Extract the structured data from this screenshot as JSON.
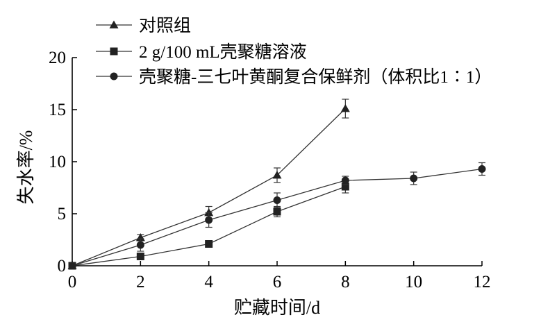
{
  "chart_data": {
    "type": "line",
    "title": "",
    "xlabel": "贮藏时间/d",
    "ylabel": "失水率/%",
    "xlim": [
      0,
      12
    ],
    "ylim": [
      0,
      20
    ],
    "xticks": [
      0,
      2,
      4,
      6,
      8,
      10,
      12
    ],
    "yticks": [
      0,
      5,
      10,
      15,
      20
    ],
    "grid": false,
    "legend_position": "top-left",
    "series": [
      {
        "name": "对照组",
        "marker": "triangle",
        "x": [
          0,
          2,
          4,
          6,
          8
        ],
        "y": [
          0,
          2.7,
          5.1,
          8.7,
          15.1
        ],
        "error": [
          0.2,
          0.3,
          0.6,
          0.7,
          0.9
        ]
      },
      {
        "name": "2 g/100 mL壳聚糖溶液",
        "marker": "square",
        "x": [
          0,
          2,
          4,
          6,
          8
        ],
        "y": [
          0,
          0.9,
          2.1,
          5.2,
          7.6
        ],
        "error": [
          0.1,
          0.3,
          0.3,
          0.5,
          0.6
        ]
      },
      {
        "name": "壳聚糖-三七叶黄酮复合保鲜剂（体积比1∶1）",
        "marker": "circle",
        "x": [
          0,
          2,
          4,
          6,
          8,
          10,
          12
        ],
        "y": [
          0,
          2.0,
          4.4,
          6.3,
          8.2,
          8.4,
          9.3
        ],
        "error": [
          0.1,
          0.6,
          0.7,
          0.7,
          0.4,
          0.6,
          0.6
        ]
      }
    ]
  },
  "colors": {
    "line": "#333333",
    "marker": "#222222",
    "axis": "#000000"
  }
}
